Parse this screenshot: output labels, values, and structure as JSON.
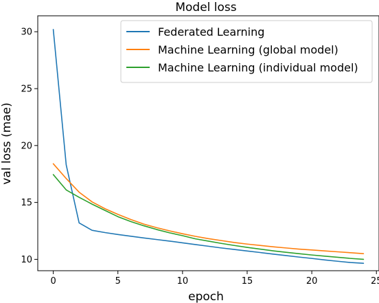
{
  "chart_data": {
    "type": "line",
    "title": "Model loss",
    "xlabel": "epoch",
    "ylabel": "val loss (mae)",
    "xlim": [
      -1.2,
      25.2
    ],
    "ylim": [
      9.0,
      31.4
    ],
    "xticks": [
      0,
      5,
      10,
      15,
      20,
      25
    ],
    "yticks": [
      10,
      15,
      20,
      25,
      30
    ],
    "grid": false,
    "legend_position": "top-right",
    "x": [
      0,
      1,
      2,
      3,
      4,
      5,
      6,
      7,
      8,
      9,
      10,
      11,
      12,
      13,
      14,
      15,
      16,
      17,
      18,
      19,
      20,
      21,
      22,
      23,
      24
    ],
    "series": [
      {
        "name": "Federated Learning",
        "color": "#1f77b4",
        "values": [
          30.2,
          18.3,
          13.2,
          12.55,
          12.35,
          12.18,
          12.03,
          11.88,
          11.74,
          11.6,
          11.45,
          11.3,
          11.15,
          11.0,
          10.87,
          10.73,
          10.6,
          10.46,
          10.33,
          10.2,
          10.08,
          9.95,
          9.83,
          9.72,
          9.65
        ]
      },
      {
        "name": "Machine Learning (global model)",
        "color": "#ff7f0e",
        "values": [
          18.4,
          17.1,
          15.9,
          15.05,
          14.45,
          13.95,
          13.5,
          13.1,
          12.78,
          12.5,
          12.25,
          12.02,
          11.82,
          11.65,
          11.48,
          11.34,
          11.22,
          11.1,
          11.0,
          10.9,
          10.82,
          10.74,
          10.66,
          10.58,
          10.5
        ]
      },
      {
        "name": "Machine Learning (individual model)",
        "color": "#2ca02c",
        "values": [
          17.45,
          16.1,
          15.45,
          14.85,
          14.3,
          13.75,
          13.32,
          12.95,
          12.62,
          12.33,
          12.08,
          11.8,
          11.6,
          11.4,
          11.22,
          11.05,
          10.9,
          10.75,
          10.62,
          10.5,
          10.38,
          10.28,
          10.18,
          10.08,
          10.0
        ]
      }
    ]
  }
}
